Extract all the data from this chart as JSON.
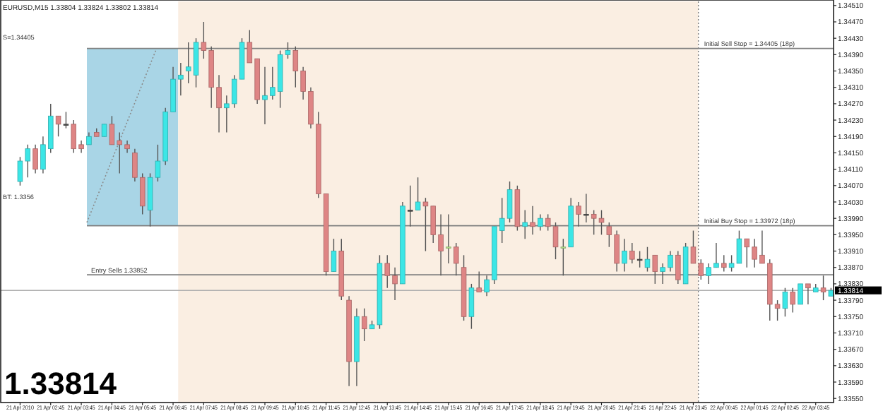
{
  "chart_data": {
    "type": "candlestick",
    "title": "EURUSD,M15  1.33804 1.33824 1.33802 1.33814",
    "x": [
      "2010-04-21T01:45",
      "2010-04-21T02:00",
      "2010-04-21T02:15",
      "2010-04-21T02:30",
      "2010-04-21T02:45",
      "2010-04-21T03:00",
      "2010-04-21T03:15",
      "2010-04-21T03:30",
      "2010-04-21T03:45",
      "2010-04-21T04:00",
      "2010-04-21T04:15",
      "2010-04-21T04:30",
      "2010-04-21T04:45",
      "2010-04-21T05:00",
      "2010-04-21T05:15",
      "2010-04-21T05:30",
      "2010-04-21T05:45",
      "2010-04-21T06:00",
      "2010-04-21T06:15",
      "2010-04-21T06:30",
      "2010-04-21T06:45",
      "2010-04-21T07:00",
      "2010-04-21T07:15",
      "2010-04-21T07:30",
      "2010-04-21T07:45",
      "2010-04-21T08:00",
      "2010-04-21T08:15",
      "2010-04-21T08:30",
      "2010-04-21T08:45",
      "2010-04-21T09:00",
      "2010-04-21T09:15",
      "2010-04-21T09:30",
      "2010-04-21T09:45",
      "2010-04-21T10:00",
      "2010-04-21T10:15",
      "2010-04-21T10:30",
      "2010-04-21T10:45",
      "2010-04-21T11:00",
      "2010-04-21T11:15",
      "2010-04-21T11:30",
      "2010-04-21T11:45",
      "2010-04-21T12:00",
      "2010-04-21T12:15",
      "2010-04-21T12:30",
      "2010-04-21T12:45",
      "2010-04-21T13:00",
      "2010-04-21T13:15",
      "2010-04-21T13:30",
      "2010-04-21T13:45",
      "2010-04-21T14:00",
      "2010-04-21T14:15",
      "2010-04-21T14:30",
      "2010-04-21T14:45",
      "2010-04-21T15:00",
      "2010-04-21T15:15",
      "2010-04-21T15:30",
      "2010-04-21T15:45",
      "2010-04-21T16:00",
      "2010-04-21T16:15",
      "2010-04-21T16:30",
      "2010-04-21T16:45",
      "2010-04-21T17:00",
      "2010-04-21T17:15",
      "2010-04-21T17:30",
      "2010-04-21T17:45",
      "2010-04-21T18:00",
      "2010-04-21T18:15",
      "2010-04-21T18:30",
      "2010-04-21T18:45",
      "2010-04-21T19:00",
      "2010-04-21T19:15",
      "2010-04-21T19:30",
      "2010-04-21T19:45",
      "2010-04-21T20:00",
      "2010-04-21T20:15",
      "2010-04-21T20:30",
      "2010-04-21T20:45",
      "2010-04-21T21:00",
      "2010-04-21T21:15",
      "2010-04-21T21:30",
      "2010-04-21T21:45",
      "2010-04-21T22:00",
      "2010-04-21T22:15",
      "2010-04-21T22:30",
      "2010-04-21T22:45",
      "2010-04-21T23:00",
      "2010-04-21T23:15",
      "2010-04-21T23:30",
      "2010-04-21T23:45",
      "2010-04-22T00:00",
      "2010-04-22T00:15",
      "2010-04-22T00:30",
      "2010-04-22T00:45",
      "2010-04-22T01:00",
      "2010-04-22T01:15",
      "2010-04-22T01:30",
      "2010-04-22T01:45",
      "2010-04-22T02:00",
      "2010-04-22T02:15",
      "2010-04-22T02:30",
      "2010-04-22T02:45",
      "2010-04-22T03:00",
      "2010-04-22T03:15",
      "2010-04-22T03:30",
      "2010-04-22T03:45",
      "2010-04-22T04:00",
      "2010-04-22T04:15"
    ],
    "ohlc": [
      [
        1.3408,
        1.3414,
        1.3407,
        1.3413
      ],
      [
        1.3413,
        1.3417,
        1.3409,
        1.3416
      ],
      [
        1.3416,
        1.3417,
        1.341,
        1.3411
      ],
      [
        1.3411,
        1.3419,
        1.341,
        1.3417
      ],
      [
        1.3416,
        1.3427,
        1.3415,
        1.3424
      ],
      [
        1.3424,
        1.3424,
        1.3419,
        1.3422
      ],
      [
        1.3422,
        1.3425,
        1.3421,
        1.3422
      ],
      [
        1.3422,
        1.3423,
        1.3415,
        1.3416
      ],
      [
        1.3417,
        1.3418,
        1.3415,
        1.3416
      ],
      [
        1.3417,
        1.342,
        1.3417,
        1.3419
      ],
      [
        1.342,
        1.3421,
        1.3419,
        1.3419
      ],
      [
        1.3419,
        1.3422,
        1.3419,
        1.3422
      ],
      [
        1.3422,
        1.3424,
        1.3417,
        1.3417
      ],
      [
        1.3418,
        1.342,
        1.341,
        1.3417
      ],
      [
        1.3417,
        1.3418,
        1.3415,
        1.3416
      ],
      [
        1.3415,
        1.3416,
        1.3408,
        1.3409
      ],
      [
        1.3409,
        1.341,
        1.34,
        1.3402
      ],
      [
        1.3401,
        1.341,
        1.3397,
        1.3409
      ],
      [
        1.3409,
        1.3417,
        1.3408,
        1.3413
      ],
      [
        1.3413,
        1.3426,
        1.3412,
        1.3425
      ],
      [
        1.3425,
        1.3436,
        1.3425,
        1.3433
      ],
      [
        1.3433,
        1.3437,
        1.3429,
        1.3434
      ],
      [
        1.3435,
        1.3442,
        1.3432,
        1.3436
      ],
      [
        1.3434,
        1.3443,
        1.3431,
        1.3442
      ],
      [
        1.3442,
        1.3447,
        1.3438,
        1.344
      ],
      [
        1.344,
        1.3441,
        1.3426,
        1.3431
      ],
      [
        1.3431,
        1.3434,
        1.342,
        1.3426
      ],
      [
        1.3426,
        1.3429,
        1.342,
        1.3427
      ],
      [
        1.3427,
        1.3434,
        1.3426,
        1.3433
      ],
      [
        1.3433,
        1.3443,
        1.3433,
        1.3442
      ],
      [
        1.3442,
        1.3445,
        1.3437,
        1.3437
      ],
      [
        1.3438,
        1.3438,
        1.3427,
        1.3428
      ],
      [
        1.3428,
        1.3436,
        1.3422,
        1.3429
      ],
      [
        1.3429,
        1.3436,
        1.3428,
        1.3431
      ],
      [
        1.343,
        1.344,
        1.3426,
        1.3439
      ],
      [
        1.3439,
        1.3442,
        1.3438,
        1.344
      ],
      [
        1.344,
        1.3441,
        1.3431,
        1.3435
      ],
      [
        1.3435,
        1.3436,
        1.3428,
        1.343
      ],
      [
        1.343,
        1.3431,
        1.3421,
        1.3422
      ],
      [
        1.3422,
        1.3425,
        1.3404,
        1.3405
      ],
      [
        1.3405,
        1.3405,
        1.3385,
        1.3386
      ],
      [
        1.3386,
        1.3394,
        1.3386,
        1.3391
      ],
      [
        1.3391,
        1.3394,
        1.3379,
        1.338
      ],
      [
        1.3379,
        1.338,
        1.3358,
        1.3364
      ],
      [
        1.3364,
        1.3377,
        1.3358,
        1.3375
      ],
      [
        1.3375,
        1.3377,
        1.3369,
        1.3372
      ],
      [
        1.3372,
        1.3374,
        1.3372,
        1.3373
      ],
      [
        1.3373,
        1.339,
        1.3372,
        1.3388
      ],
      [
        1.3388,
        1.339,
        1.3382,
        1.3385
      ],
      [
        1.3385,
        1.3387,
        1.3379,
        1.3383
      ],
      [
        1.3383,
        1.3403,
        1.3383,
        1.3402
      ],
      [
        1.3401,
        1.3407,
        1.3397,
        1.3401
      ],
      [
        1.3401,
        1.3409,
        1.3401,
        1.3403
      ],
      [
        1.3403,
        1.3404,
        1.3391,
        1.3402
      ],
      [
        1.3402,
        1.3402,
        1.3393,
        1.3395
      ],
      [
        1.3395,
        1.34,
        1.3385,
        1.3391
      ],
      [
        1.3392,
        1.34,
        1.3388,
        1.3392
      ],
      [
        1.3392,
        1.3393,
        1.3385,
        1.3388
      ],
      [
        1.3387,
        1.339,
        1.3374,
        1.3375
      ],
      [
        1.3375,
        1.3383,
        1.3372,
        1.3382
      ],
      [
        1.3382,
        1.3386,
        1.3381,
        1.3381
      ],
      [
        1.3381,
        1.3385,
        1.338,
        1.3384
      ],
      [
        1.3384,
        1.3397,
        1.3383,
        1.3397
      ],
      [
        1.3396,
        1.3404,
        1.3393,
        1.3399
      ],
      [
        1.3399,
        1.3408,
        1.3398,
        1.3406
      ],
      [
        1.3406,
        1.3407,
        1.3396,
        1.3397
      ],
      [
        1.3397,
        1.3401,
        1.3394,
        1.3398
      ],
      [
        1.3398,
        1.3402,
        1.3395,
        1.3397
      ],
      [
        1.3397,
        1.34,
        1.3396,
        1.3399
      ],
      [
        1.3399,
        1.34,
        1.3396,
        1.3397
      ],
      [
        1.3397,
        1.3398,
        1.3389,
        1.3392
      ],
      [
        1.3392,
        1.3394,
        1.3385,
        1.3392
      ],
      [
        1.3392,
        1.3404,
        1.3392,
        1.3402
      ],
      [
        1.3402,
        1.3403,
        1.3397,
        1.34
      ],
      [
        1.34,
        1.3405,
        1.3398,
        1.34
      ],
      [
        1.34,
        1.3401,
        1.3395,
        1.3399
      ],
      [
        1.3399,
        1.3401,
        1.3395,
        1.3398
      ],
      [
        1.3397,
        1.3398,
        1.3392,
        1.3395
      ],
      [
        1.3395,
        1.3396,
        1.3386,
        1.3388
      ],
      [
        1.3388,
        1.3394,
        1.3386,
        1.3391
      ],
      [
        1.3391,
        1.3393,
        1.3388,
        1.3389
      ],
      [
        1.3389,
        1.3391,
        1.3387,
        1.3389
      ],
      [
        1.3387,
        1.3392,
        1.3386,
        1.3389
      ],
      [
        1.339,
        1.339,
        1.3383,
        1.3386
      ],
      [
        1.3386,
        1.3388,
        1.3383,
        1.3387
      ],
      [
        1.3387,
        1.3391,
        1.3386,
        1.339
      ],
      [
        1.339,
        1.3391,
        1.3383,
        1.3384
      ],
      [
        1.3383,
        1.3393,
        1.3383,
        1.3392
      ],
      [
        1.3392,
        1.3396,
        1.3388,
        1.3388
      ],
      [
        1.3388,
        1.3389,
        1.3384,
        1.3385
      ],
      [
        1.3385,
        1.3388,
        1.3383,
        1.3387
      ],
      [
        1.3387,
        1.3393,
        1.3387,
        1.3388
      ],
      [
        1.3388,
        1.339,
        1.3386,
        1.3387
      ],
      [
        1.3387,
        1.339,
        1.3386,
        1.3388
      ],
      [
        1.3388,
        1.3396,
        1.3388,
        1.3394
      ],
      [
        1.3394,
        1.3394,
        1.3387,
        1.3392
      ],
      [
        1.3392,
        1.3394,
        1.3387,
        1.3389
      ],
      [
        1.339,
        1.3396,
        1.3388,
        1.3388
      ],
      [
        1.3388,
        1.3389,
        1.3374,
        1.3378
      ],
      [
        1.3378,
        1.3379,
        1.3374,
        1.3377
      ],
      [
        1.3377,
        1.3382,
        1.3375,
        1.3381
      ],
      [
        1.3381,
        1.3382,
        1.3376,
        1.3378
      ],
      [
        1.3378,
        1.3383,
        1.3378,
        1.3383
      ],
      [
        1.3383,
        1.3383,
        1.3378,
        1.3382
      ],
      [
        1.3381,
        1.3383,
        1.3381,
        1.3382
      ],
      [
        1.3382,
        1.3385,
        1.3379,
        1.3381
      ],
      [
        1.338,
        1.3382,
        1.338,
        1.33814
      ]
    ],
    "colors": [
      "#3ce6e6",
      "#3ce6e6",
      "#de8585",
      "#3ce6e6",
      "#3ce6e6",
      "#de8585",
      "#505050",
      "#de8585",
      "#de8585",
      "#3ce6e6",
      "#de8585",
      "#3ce6e6",
      "#de8585",
      "#de8585",
      "#de8585",
      "#de8585",
      "#de8585",
      "#3ce6e6",
      "#3ce6e6",
      "#3ce6e6",
      "#3ce6e6",
      "#3ce6e6",
      "#3ce6e6",
      "#3ce6e6",
      "#de8585",
      "#de8585",
      "#de8585",
      "#3ce6e6",
      "#3ce6e6",
      "#3ce6e6",
      "#de8585",
      "#de8585",
      "#3ce6e6",
      "#3ce6e6",
      "#3ce6e6",
      "#3ce6e6",
      "#de8585",
      "#de8585",
      "#de8585",
      "#de8585",
      "#de8585",
      "#3ce6e6",
      "#de8585",
      "#de8585",
      "#3ce6e6",
      "#de8585",
      "#3ce6e6",
      "#3ce6e6",
      "#de8585",
      "#de8585",
      "#3ce6e6",
      "#505050",
      "#3ce6e6",
      "#de8585",
      "#de8585",
      "#de8585",
      "#b4e08c",
      "#de8585",
      "#de8585",
      "#3ce6e6",
      "#de8585",
      "#3ce6e6",
      "#3ce6e6",
      "#3ce6e6",
      "#3ce6e6",
      "#de8585",
      "#3ce6e6",
      "#de8585",
      "#3ce6e6",
      "#de8585",
      "#de8585",
      "#b4e08c",
      "#3ce6e6",
      "#de8585",
      "#505050",
      "#de8585",
      "#de8585",
      "#de8585",
      "#de8585",
      "#3ce6e6",
      "#de8585",
      "#505050",
      "#3ce6e6",
      "#de8585",
      "#3ce6e6",
      "#3ce6e6",
      "#de8585",
      "#3ce6e6",
      "#de8585",
      "#de8585",
      "#3ce6e6",
      "#3ce6e6",
      "#de8585",
      "#3ce6e6",
      "#3ce6e6",
      "#de8585",
      "#de8585",
      "#de8585",
      "#de8585",
      "#de8585",
      "#3ce6e6",
      "#de8585",
      "#3ce6e6",
      "#de8585",
      "#3ce6e6",
      "#de8585",
      "#3ce6e6"
    ],
    "series": [
      {
        "type": "line",
        "color": "#8a8a8a",
        "line_style": "dotted",
        "x": [
          "2010-04-21T03:56",
          "2010-04-21T06:11"
        ],
        "values": [
          1.3398,
          1.344
        ]
      }
    ],
    "xlim": [
      "2010-04-21T01:07",
      "2010-04-22T04:20"
    ],
    "xticks": [
      {
        "value": "2010-04-21T01:45",
        "label": "21 Apr 2010"
      },
      {
        "value": "2010-04-21T02:45",
        "label": "21 Apr 02:45"
      },
      {
        "value": "2010-04-21T03:45",
        "label": "21 Apr 03:45"
      },
      {
        "value": "2010-04-21T04:45",
        "label": "21 Apr 04:45"
      },
      {
        "value": "2010-04-21T05:45",
        "label": "21 Apr 05:45"
      },
      {
        "value": "2010-04-21T06:45",
        "label": "21 Apr 06:45"
      },
      {
        "value": "2010-04-21T07:45",
        "label": "21 Apr 07:45"
      },
      {
        "value": "2010-04-21T08:45",
        "label": "21 Apr 08:45"
      },
      {
        "value": "2010-04-21T09:45",
        "label": "21 Apr 09:45"
      },
      {
        "value": "2010-04-21T10:45",
        "label": "21 Apr 10:45"
      },
      {
        "value": "2010-04-21T11:45",
        "label": "21 Apr 11:45"
      },
      {
        "value": "2010-04-21T12:45",
        "label": "21 Apr 12:45"
      },
      {
        "value": "2010-04-21T13:45",
        "label": "21 Apr 13:45"
      },
      {
        "value": "2010-04-21T14:45",
        "label": "21 Apr 14:45"
      },
      {
        "value": "2010-04-21T15:45",
        "label": "21 Apr 15:45"
      },
      {
        "value": "2010-04-21T16:45",
        "label": "21 Apr 16:45"
      },
      {
        "value": "2010-04-21T17:45",
        "label": "21 Apr 17:45"
      },
      {
        "value": "2010-04-21T18:45",
        "label": "21 Apr 18:45"
      },
      {
        "value": "2010-04-21T19:45",
        "label": "21 Apr 19:45"
      },
      {
        "value": "2010-04-21T20:45",
        "label": "21 Apr 20:45"
      },
      {
        "value": "2010-04-21T21:45",
        "label": "21 Apr 21:45"
      },
      {
        "value": "2010-04-21T22:45",
        "label": "21 Apr 22:45"
      },
      {
        "value": "2010-04-21T23:45",
        "label": "21 Apr 23:45"
      },
      {
        "value": "2010-04-22T00:45",
        "label": "22 Apr 00:45"
      },
      {
        "value": "2010-04-22T01:45",
        "label": "22 Apr 01:45"
      },
      {
        "value": "2010-04-22T02:45",
        "label": "22 Apr 02:45"
      },
      {
        "value": "2010-04-22T03:45",
        "label": "22 Apr 03:45"
      }
    ],
    "ylim": [
      1.3354,
      1.3452
    ],
    "yticks": [
      {
        "value": 1.3451,
        "label": "1.34510"
      },
      {
        "value": 1.3447,
        "label": "1.34470"
      },
      {
        "value": 1.3443,
        "label": "1.34430"
      },
      {
        "value": 1.3439,
        "label": "1.34390"
      },
      {
        "value": 1.3435,
        "label": "1.34350"
      },
      {
        "value": 1.3431,
        "label": "1.34310"
      },
      {
        "value": 1.3427,
        "label": "1.34270"
      },
      {
        "value": 1.3423,
        "label": "1.34230"
      },
      {
        "value": 1.3419,
        "label": "1.34190"
      },
      {
        "value": 1.3415,
        "label": "1.34150"
      },
      {
        "value": 1.3411,
        "label": "1.34110"
      },
      {
        "value": 1.3407,
        "label": "1.34070"
      },
      {
        "value": 1.3403,
        "label": "1.34030"
      },
      {
        "value": 1.3399,
        "label": "1.33990"
      },
      {
        "value": 1.3395,
        "label": "1.33950"
      },
      {
        "value": 1.3391,
        "label": "1.33910"
      },
      {
        "value": 1.3387,
        "label": "1.33870"
      },
      {
        "value": 1.3383,
        "label": "1.33830"
      },
      {
        "value": 1.3379,
        "label": "1.33790"
      },
      {
        "value": 1.3375,
        "label": "1.33750"
      },
      {
        "value": 1.3371,
        "label": "1.33710"
      },
      {
        "value": 1.3367,
        "label": "1.33670"
      },
      {
        "value": 1.3363,
        "label": "1.33630"
      },
      {
        "value": 1.3359,
        "label": "1.33590"
      },
      {
        "value": 1.3355,
        "label": "1.33550"
      }
    ],
    "bands": [
      {
        "axis": "x",
        "from": "2010-04-21T03:56",
        "to": "2010-04-21T06:55",
        "color": "#a9d5e6"
      },
      {
        "axis": "x",
        "from": "2010-04-21T06:55",
        "to": "2010-04-21T23:55",
        "color": "#faeee2"
      }
    ],
    "ref_lines": [
      {
        "axis": "y",
        "value": 1.34405,
        "label": "Initial Sell Stop = 1.34405 (18p)",
        "color": "#808080"
      },
      {
        "axis": "y",
        "value": 1.33972,
        "label": "Initial Buy Stop = 1.33972 (18p)",
        "color": "#808080"
      },
      {
        "axis": "y",
        "value": 1.33852,
        "label": "Entry Sells 1.33852",
        "color": "#808080"
      },
      {
        "axis": "y",
        "value": 1.33814,
        "label": "1.33814",
        "color": "#b0b0b0"
      },
      {
        "axis": "x",
        "value": "2010-04-21T23:55",
        "color": "#808080",
        "line_style": "dotted"
      }
    ],
    "annotations": [
      "S=1.34405",
      "BT: 1.3356",
      "1.33814"
    ]
  }
}
